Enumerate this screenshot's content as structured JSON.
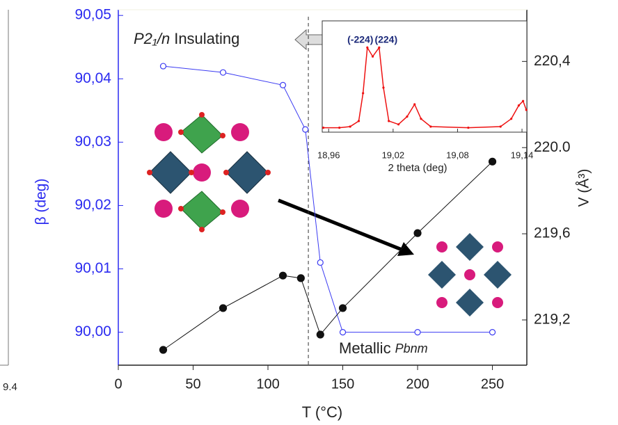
{
  "chart_data": {
    "type": "line",
    "x_label": "T (°C)",
    "y_label": "β (deg)",
    "y2_label": "V (Å³)",
    "xlim": [
      0,
      273
    ],
    "xticks": [
      0,
      50,
      100,
      150,
      200,
      250
    ],
    "ylim": [
      89.9948,
      90.0509
    ],
    "yticks": [
      {
        "value": 90.0,
        "label": "90,00"
      },
      {
        "value": 90.01,
        "label": "90,01"
      },
      {
        "value": 90.02,
        "label": "90,02"
      },
      {
        "value": 90.03,
        "label": "90,03"
      },
      {
        "value": 90.04,
        "label": "90,04"
      },
      {
        "value": 90.05,
        "label": "90,05"
      }
    ],
    "y2lim": [
      218.99,
      220.64
    ],
    "y2ticks": [
      {
        "value": 219.2,
        "label": "219,2"
      },
      {
        "value": 219.6,
        "label": "219,6"
      },
      {
        "value": 220.0,
        "label": "220.0"
      },
      {
        "value": 220.4,
        "label": "220,4"
      }
    ],
    "transition_x": 127,
    "series": [
      {
        "axis": "y",
        "color": "#3b3bf2",
        "marker": "open",
        "x": [
          30,
          70,
          110,
          125,
          135,
          150,
          200,
          250
        ],
        "values": [
          90.042,
          90.041,
          90.039,
          90.032,
          90.011,
          90.0,
          90.0,
          90.0
        ]
      },
      {
        "axis": "y2",
        "color": "#111111",
        "marker": "filled",
        "x": [
          30,
          70,
          110,
          122,
          135,
          150,
          200,
          250
        ],
        "values": [
          219.061,
          219.255,
          219.406,
          219.394,
          219.132,
          219.255,
          219.603,
          219.935
        ]
      }
    ],
    "phase_low": {
      "symbol": "P2₁/n",
      "label": "Insulating"
    },
    "phase_high": {
      "label": "Metallic",
      "symbol": "Pbnm"
    },
    "fragment_label": "9.4",
    "inset": {
      "type": "line",
      "x_label": "2 theta (deg)",
      "color": "#ee1111",
      "xlim": [
        18.954,
        19.1445
      ],
      "xticks": [
        {
          "value": 18.96,
          "label": "18,96"
        },
        {
          "value": 19.02,
          "label": "19,02"
        },
        {
          "value": 19.08,
          "label": "19,08"
        },
        {
          "value": 19.14,
          "label": "19,14"
        }
      ],
      "ylim": [
        0,
        1
      ],
      "x": [
        18.955,
        18.97,
        18.98,
        18.988,
        18.992,
        18.996,
        19.001,
        19.007,
        19.011,
        19.016,
        19.025,
        19.033,
        19.04,
        19.046,
        19.055,
        19.09,
        19.12,
        19.13,
        19.137,
        19.141,
        19.144
      ],
      "values": [
        0.04,
        0.04,
        0.05,
        0.1,
        0.35,
        0.76,
        0.68,
        0.76,
        0.4,
        0.1,
        0.07,
        0.14,
        0.25,
        0.12,
        0.05,
        0.04,
        0.05,
        0.12,
        0.24,
        0.28,
        0.2
      ],
      "peak_labels": [
        {
          "label": "(-224)",
          "x": 18.996
        },
        {
          "label": "(224)",
          "x": 19.007
        }
      ]
    }
  }
}
